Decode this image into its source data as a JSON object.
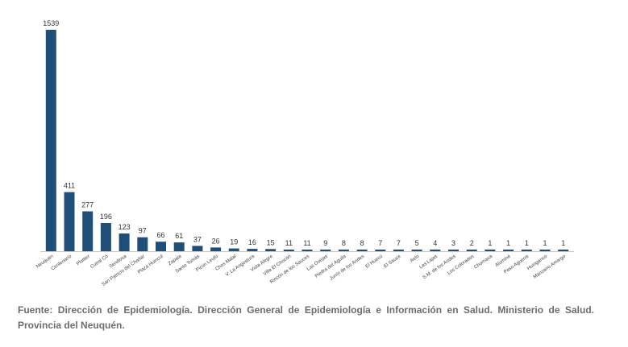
{
  "chart_data": {
    "type": "bar",
    "categories": [
      "Neuquén",
      "Centenario",
      "Plottier",
      "Cutral Có",
      "Senillosa",
      "San Patricio del Chañar",
      "Plaza Huincul",
      "Zapala",
      "Santo Tomás",
      "Picún Leufú",
      "Chos Malal",
      "V. La Angostura",
      "Vista Alegre",
      "Villa El Chocón",
      "Rincón de los Sauces",
      "Las Ovejas",
      "Piedra del Águila",
      "Junín de los Andes",
      "El Huecú",
      "El Sauce",
      "Aelo",
      "Las Lajas",
      "S.M. de los Andes",
      "Los Colorados",
      "Chorriaca",
      "Aluminé",
      "Paso Aguerre",
      "Huinganco",
      "Manzano Amargo"
    ],
    "values": [
      1539,
      411,
      277,
      196,
      123,
      97,
      66,
      61,
      37,
      26,
      19,
      16,
      15,
      11,
      11,
      9,
      8,
      8,
      7,
      7,
      5,
      4,
      3,
      2,
      1,
      1,
      1,
      1,
      1
    ],
    "ylim": [
      0,
      1539
    ],
    "bar_color": "#1f4e79",
    "grid": false,
    "legend": "none"
  },
  "source_note": "Fuente: Dirección de Epidemiología. Dirección General de Epidemiología e Información en Salud. Ministerio de Salud. Provincia del Neuquén."
}
